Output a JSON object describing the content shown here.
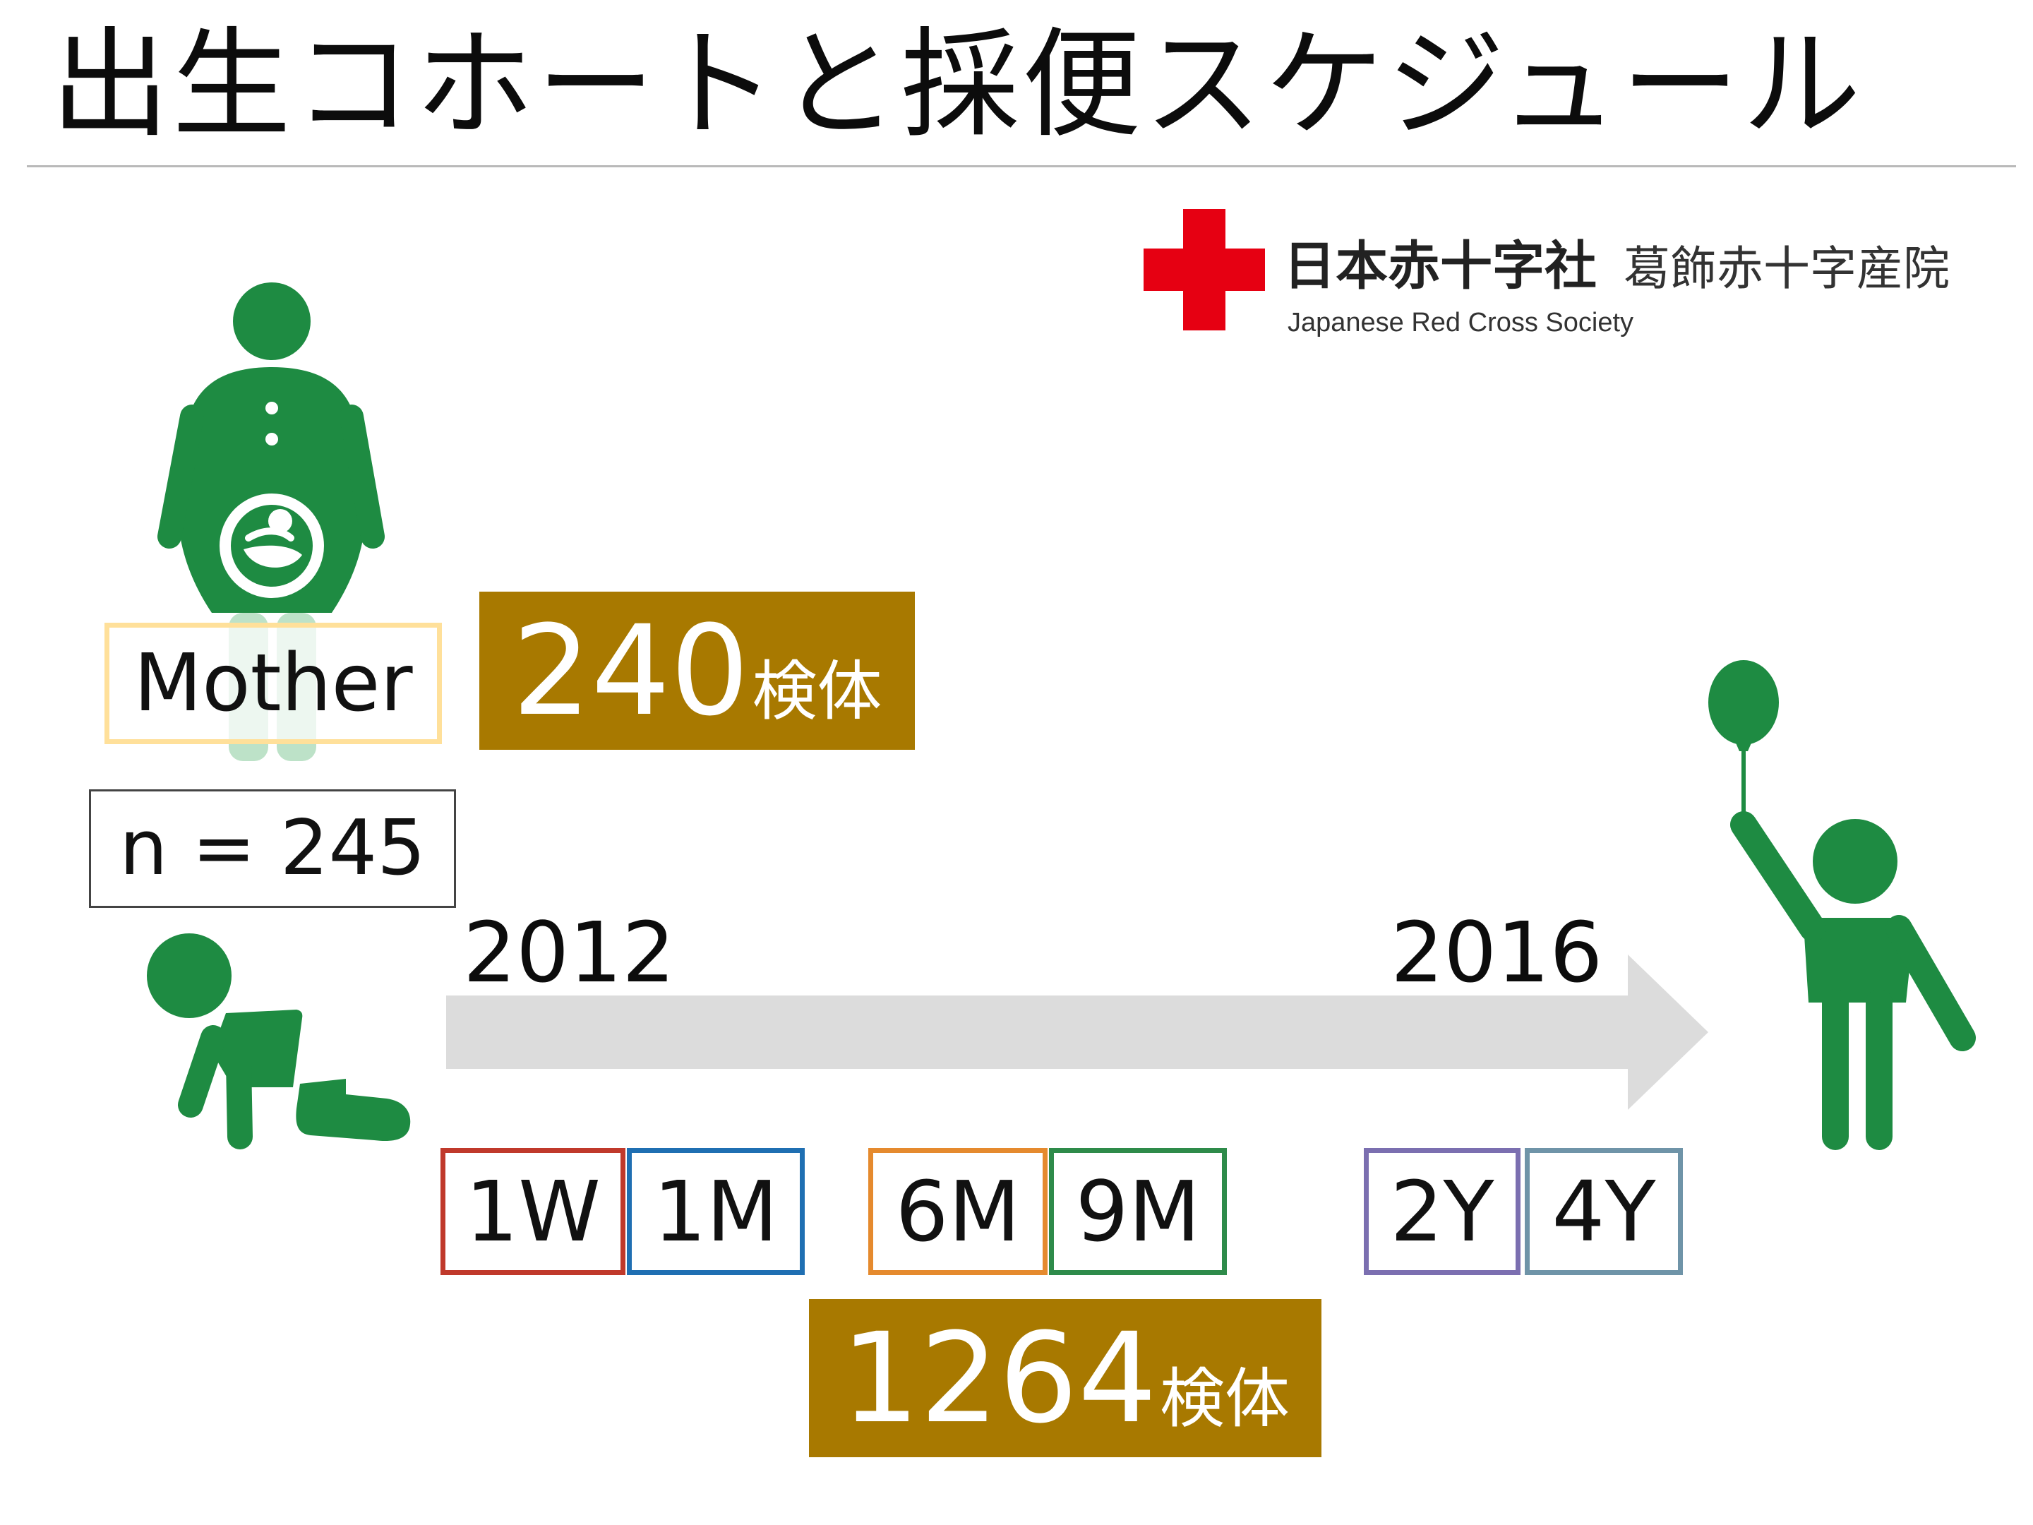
{
  "slide": {
    "title": "出生コホートと採便スケジュール"
  },
  "logo": {
    "org_name": "日本赤十字社",
    "org_name_en": "Japanese Red Cross Society",
    "hospital_name": "葛飾赤十字産院",
    "cross_color": "#e60012"
  },
  "mother": {
    "label": "Mother",
    "n": "n = 245"
  },
  "counts": {
    "mother": {
      "value": "240",
      "unit": "検体"
    },
    "infant": {
      "value": "1264",
      "unit": "検体"
    }
  },
  "timeline": {
    "start_year": "2012",
    "end_year": "2016",
    "arrow_color": "#dcdcdc"
  },
  "timepoints": [
    {
      "label": "1W",
      "color": "#c0392b"
    },
    {
      "label": "1M",
      "color": "#1f6fb2"
    },
    {
      "label": "6M",
      "color": "#e58a2e"
    },
    {
      "label": "9M",
      "color": "#2e8b4a"
    },
    {
      "label": "2Y",
      "color": "#7b6fb0"
    },
    {
      "label": "4Y",
      "color": "#6f94a8"
    }
  ],
  "colors": {
    "figure_green": "#1e8b42",
    "count_box": "#a87900",
    "mother_label_border": "#ffe09a"
  },
  "icons": [
    "pregnant-mother-icon",
    "crawling-baby-icon",
    "child-with-balloon-icon",
    "red-cross-logo-icon"
  ]
}
